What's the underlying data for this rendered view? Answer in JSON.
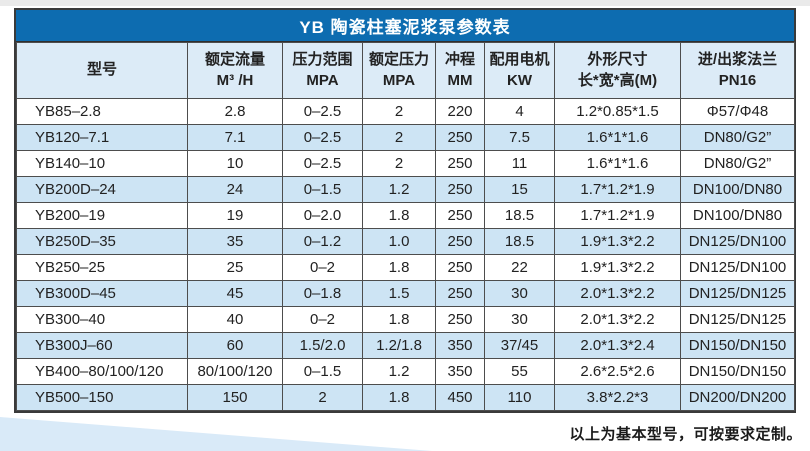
{
  "colors": {
    "title_bar_blue": "#0d6cb0",
    "header_bg": "#dcebf7",
    "row_alt_bg": "#cde4f4",
    "row_bg": "#ffffff",
    "grid_line": "#4d4d4d",
    "outer_border": "#3a3a3a",
    "swoosh_blue": "#d9eaf8"
  },
  "table": {
    "title": "YB 陶瓷柱塞泥浆泵参数表",
    "columns": [
      {
        "lines": [
          "型号"
        ]
      },
      {
        "lines": [
          "额定流量",
          "M³ /H"
        ]
      },
      {
        "lines": [
          "压力范围",
          "MPA"
        ]
      },
      {
        "lines": [
          "额定压力",
          "MPA"
        ]
      },
      {
        "lines": [
          "冲程",
          "MM"
        ]
      },
      {
        "lines": [
          "配用电机",
          "KW"
        ]
      },
      {
        "lines": [
          "外形尺寸",
          "长*宽*高(M)"
        ]
      },
      {
        "lines": [
          "进/出浆法兰",
          "PN16"
        ]
      }
    ],
    "rows": [
      [
        "YB85–2.8",
        "2.8",
        "0–2.5",
        "2",
        "220",
        "4",
        "1.2*0.85*1.5",
        "Φ57/Φ48"
      ],
      [
        "YB120–7.1",
        "7.1",
        "0–2.5",
        "2",
        "250",
        "7.5",
        "1.6*1*1.6",
        "DN80/G2”"
      ],
      [
        "YB140–10",
        "10",
        "0–2.5",
        "2",
        "250",
        "11",
        "1.6*1*1.6",
        "DN80/G2”"
      ],
      [
        "YB200D–24",
        "24",
        "0–1.5",
        "1.2",
        "250",
        "15",
        "1.7*1.2*1.9",
        "DN100/DN80"
      ],
      [
        "YB200–19",
        "19",
        "0–2.0",
        "1.8",
        "250",
        "18.5",
        "1.7*1.2*1.9",
        "DN100/DN80"
      ],
      [
        "YB250D–35",
        "35",
        "0–1.2",
        "1.0",
        "250",
        "18.5",
        "1.9*1.3*2.2",
        "DN125/DN100"
      ],
      [
        "YB250–25",
        "25",
        "0–2",
        "1.8",
        "250",
        "22",
        "1.9*1.3*2.2",
        "DN125/DN100"
      ],
      [
        "YB300D–45",
        "45",
        "0–1.8",
        "1.5",
        "250",
        "30",
        "2.0*1.3*2.2",
        "DN125/DN125"
      ],
      [
        "YB300–40",
        "40",
        "0–2",
        "1.8",
        "250",
        "30",
        "2.0*1.3*2.2",
        "DN125/DN125"
      ],
      [
        "YB300J–60",
        "60",
        "1.5/2.0",
        "1.2/1.8",
        "350",
        "37/45",
        "2.0*1.3*2.4",
        "DN150/DN150"
      ],
      [
        "YB400–80/100/120",
        "80/100/120",
        "0–1.5",
        "1.2",
        "350",
        "55",
        "2.6*2.5*2.6",
        "DN150/DN150"
      ],
      [
        "YB500–150",
        "150",
        "2",
        "1.8",
        "450",
        "110",
        "3.8*2.2*3",
        "DN200/DN200"
      ]
    ]
  },
  "footer": {
    "note": "以上为基本型号，可按要求定制。"
  }
}
